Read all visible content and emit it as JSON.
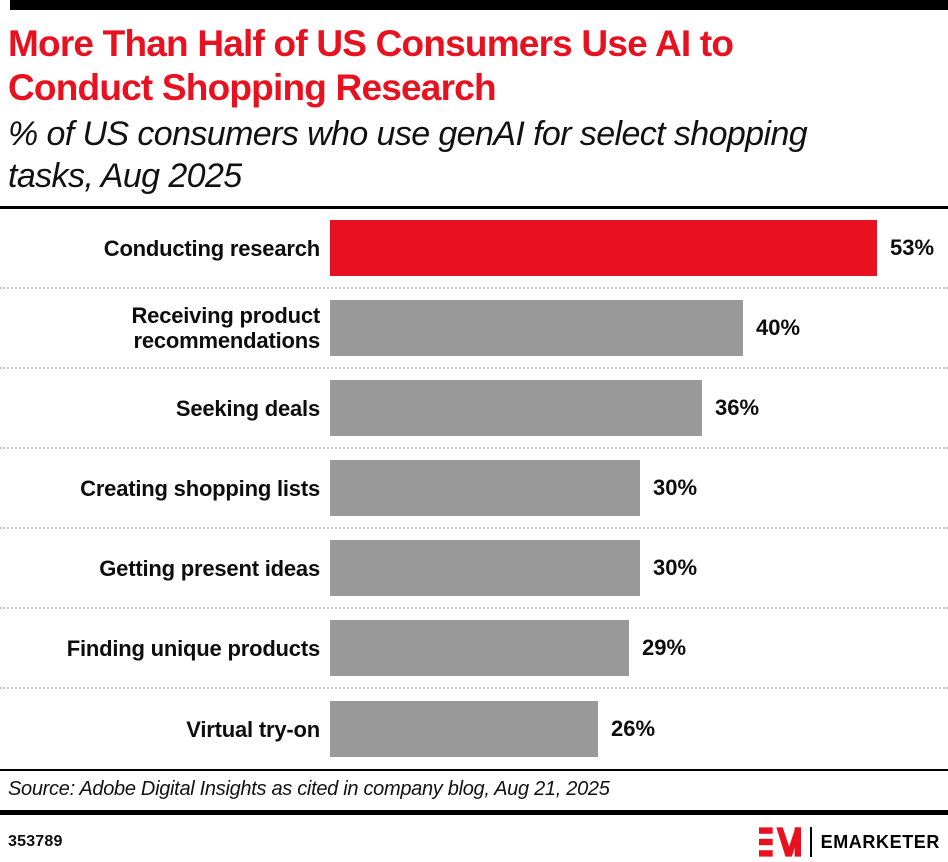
{
  "header": {
    "title": "More Than Half of US Consumers Use AI to Conduct Shopping Research",
    "subtitle": "% of US consumers who use genAI for select shopping tasks, Aug 2025"
  },
  "chart_data": {
    "type": "bar",
    "orientation": "horizontal",
    "title": "More Than Half of US Consumers Use AI to Conduct Shopping Research",
    "subtitle": "% of US consumers who use genAI for select shopping tasks, Aug 2025",
    "categories": [
      "Conducting research",
      "Receiving product recommendations",
      "Seeking deals",
      "Creating shopping lists",
      "Getting present ideas",
      "Finding unique products",
      "Virtual try-on"
    ],
    "values": [
      53,
      40,
      36,
      30,
      30,
      29,
      26
    ],
    "value_suffix": "%",
    "highlight_index": 0,
    "colors": {
      "highlight": "#E8111F",
      "default": "#999999"
    },
    "grid": false,
    "legend": false,
    "xlim": [
      0,
      56
    ]
  },
  "footer": {
    "source": "Source: Adobe Digital Insights as cited in company blog, Aug 21, 2025",
    "chart_id": "353789",
    "brand": "EMARKETER"
  }
}
